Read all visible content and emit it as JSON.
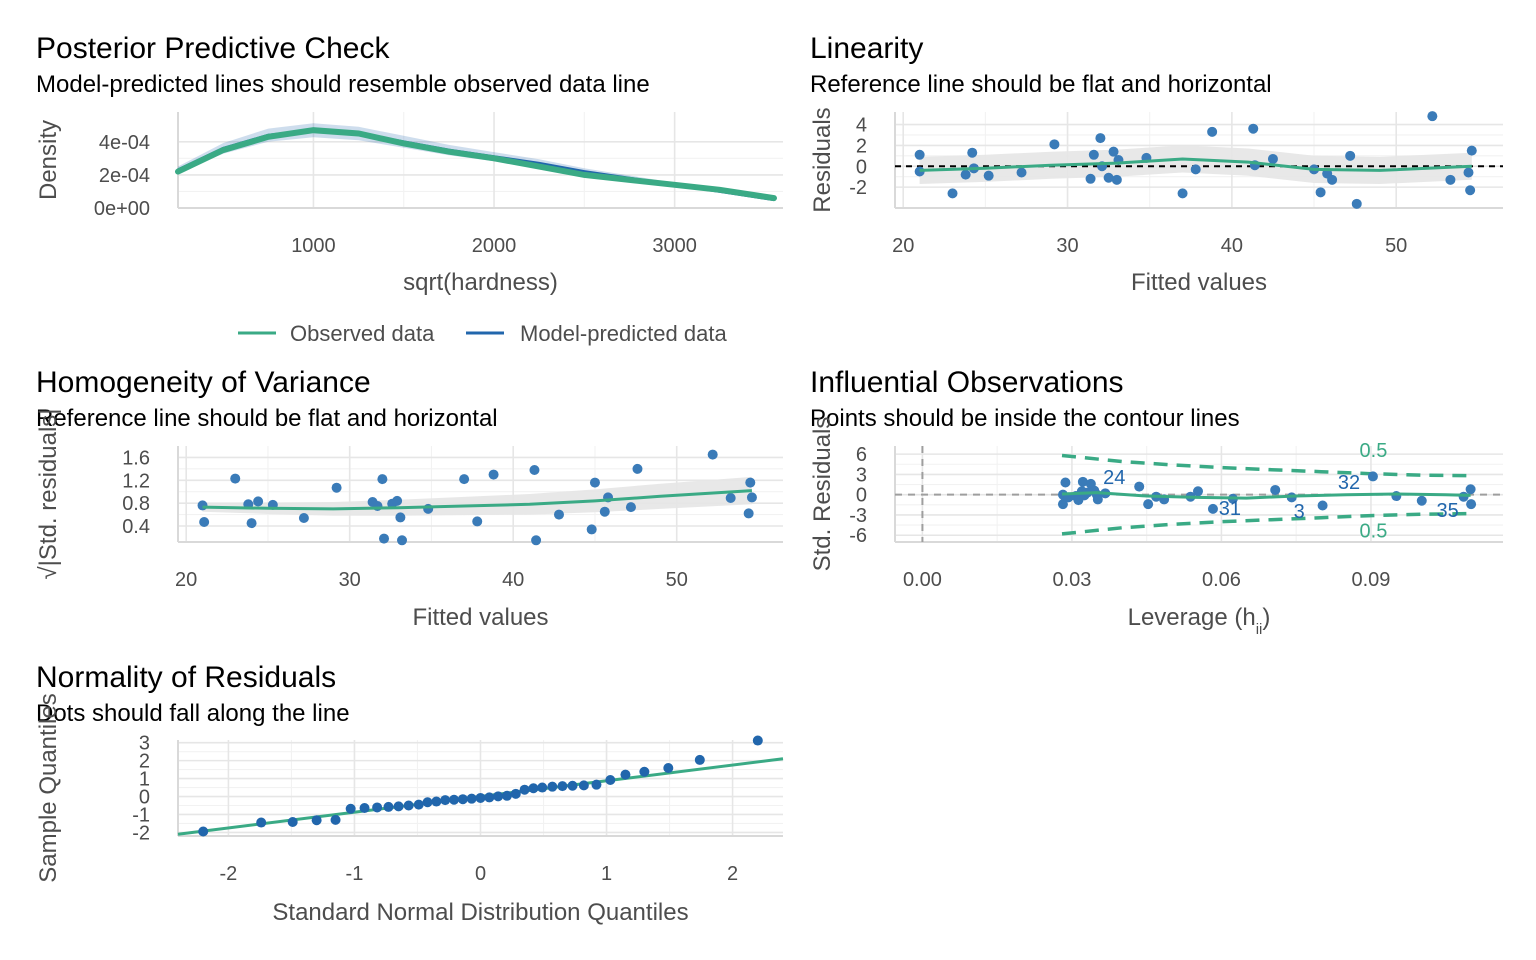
{
  "colors": {
    "observed": "#3aaa85",
    "predicted": "#2166ac",
    "points": "#3a7bb8",
    "ribbon": "#e5e5e5",
    "contour": "#3aaa85",
    "grid": "#e6e6e6"
  },
  "legend": {
    "observed": "Observed data",
    "predicted": "Model-predicted data"
  },
  "chart_data": [
    {
      "id": "ppc",
      "type": "line",
      "title": "Posterior Predictive Check",
      "subtitle": "Model-predicted lines should resemble observed data line",
      "xlabel": "sqrt(hardness)",
      "ylabel": "Density",
      "xlim": [
        250,
        3600
      ],
      "ylim": [
        0,
        0.00058
      ],
      "xticks": [
        1000,
        2000,
        3000
      ],
      "xtick_labels": [
        "1000",
        "2000",
        "3000"
      ],
      "yticks": [
        0,
        0.0002,
        0.0004
      ],
      "ytick_labels": [
        "0e+00",
        "2e-04",
        "4e-04"
      ],
      "observed": {
        "x": [
          250,
          500,
          750,
          1000,
          1250,
          1500,
          1750,
          2000,
          2250,
          2500,
          2750,
          3000,
          3250,
          3550
        ],
        "y": [
          0.00022,
          0.00035,
          0.00043,
          0.00047,
          0.00045,
          0.00039,
          0.00034,
          0.0003,
          0.00025,
          0.0002,
          0.00017,
          0.00014,
          0.00011,
          6e-05
        ]
      },
      "predicted": {
        "x": [
          250,
          500,
          750,
          1000,
          1250,
          1500,
          1750,
          2000,
          2250,
          2500,
          2750,
          3000,
          3250,
          3550
        ],
        "y": [
          0.00023,
          0.00036,
          0.00044,
          0.00047,
          0.00045,
          0.0004,
          0.00035,
          0.00031,
          0.00027,
          0.00022,
          0.00018,
          0.00014,
          0.0001,
          5e-05
        ]
      }
    },
    {
      "id": "linearity",
      "type": "scatter",
      "title": "Linearity",
      "subtitle": "Reference line should be flat and horizontal",
      "xlabel": "Fitted values",
      "ylabel": "Residuals",
      "xlim": [
        19.5,
        56.5
      ],
      "ylim": [
        -4,
        5.2
      ],
      "xticks": [
        20,
        30,
        40,
        50
      ],
      "xtick_labels": [
        "20",
        "30",
        "40",
        "50"
      ],
      "yticks": [
        -2,
        0,
        2,
        4
      ],
      "ytick_labels": [
        "-2",
        "0",
        "2",
        "4"
      ],
      "points": [
        [
          21,
          1.1
        ],
        [
          21,
          -0.5
        ],
        [
          23,
          -2.6
        ],
        [
          23.8,
          -0.8
        ],
        [
          24.2,
          1.3
        ],
        [
          24.3,
          -0.2
        ],
        [
          25.2,
          -0.9
        ],
        [
          27.2,
          -0.6
        ],
        [
          29.2,
          2.1
        ],
        [
          31.4,
          -1.2
        ],
        [
          31.6,
          1.1
        ],
        [
          32,
          2.7
        ],
        [
          32.1,
          0.0
        ],
        [
          32.5,
          -1.1
        ],
        [
          32.8,
          1.4
        ],
        [
          33,
          -1.3
        ],
        [
          33.1,
          0.6
        ],
        [
          34.8,
          0.8
        ],
        [
          37,
          -2.6
        ],
        [
          37.8,
          -0.3
        ],
        [
          38.8,
          3.3
        ],
        [
          41.3,
          3.6
        ],
        [
          41.4,
          0.1
        ],
        [
          42.5,
          0.7
        ],
        [
          45,
          -0.3
        ],
        [
          45.4,
          -2.5
        ],
        [
          45.8,
          -0.7
        ],
        [
          46.1,
          -1.3
        ],
        [
          47.2,
          1.0
        ],
        [
          47.6,
          -3.6
        ],
        [
          52.2,
          4.8
        ],
        [
          53.3,
          -1.3
        ],
        [
          54.4,
          -0.6
        ],
        [
          54.5,
          -2.3
        ],
        [
          54.6,
          1.5
        ]
      ],
      "smooth": {
        "x": [
          21,
          25,
          29,
          33,
          37,
          41,
          45,
          49,
          54.6
        ],
        "y": [
          -0.4,
          -0.2,
          0.1,
          0.3,
          0.7,
          0.4,
          -0.3,
          -0.4,
          0.0
        ]
      }
    },
    {
      "id": "homogeneity",
      "type": "scatter",
      "title": "Homogeneity of Variance",
      "subtitle": "Reference line should be flat and horizontal",
      "xlabel": "Fitted values",
      "ylabel": "√|Std. residuals|",
      "xlim": [
        19.5,
        56.5
      ],
      "ylim": [
        0.12,
        1.8
      ],
      "xticks": [
        20,
        30,
        40,
        50
      ],
      "xtick_labels": [
        "20",
        "30",
        "40",
        "50"
      ],
      "yticks": [
        0.4,
        0.8,
        1.2,
        1.6
      ],
      "ytick_labels": [
        "0.4",
        "0.8",
        "1.2",
        "1.6"
      ],
      "points": [
        [
          21,
          0.76
        ],
        [
          21.1,
          0.47
        ],
        [
          23,
          1.23
        ],
        [
          23.8,
          0.78
        ],
        [
          24,
          0.45
        ],
        [
          24.4,
          0.83
        ],
        [
          25.3,
          0.77
        ],
        [
          27.2,
          0.54
        ],
        [
          29.2,
          1.07
        ],
        [
          31.4,
          0.82
        ],
        [
          31.7,
          0.75
        ],
        [
          32,
          1.22
        ],
        [
          32.1,
          0.18
        ],
        [
          32.6,
          0.79
        ],
        [
          32.9,
          0.84
        ],
        [
          33.1,
          0.55
        ],
        [
          33.2,
          0.15
        ],
        [
          34.8,
          0.7
        ],
        [
          37,
          1.22
        ],
        [
          37.8,
          0.48
        ],
        [
          38.8,
          1.3
        ],
        [
          41.3,
          1.38
        ],
        [
          41.4,
          0.15
        ],
        [
          42.8,
          0.6
        ],
        [
          44.8,
          0.34
        ],
        [
          45,
          1.16
        ],
        [
          45.6,
          0.65
        ],
        [
          45.8,
          0.9
        ],
        [
          47.2,
          0.73
        ],
        [
          47.6,
          1.4
        ],
        [
          52.2,
          1.65
        ],
        [
          53.3,
          0.89
        ],
        [
          54.4,
          0.62
        ],
        [
          54.5,
          1.16
        ],
        [
          54.6,
          0.9
        ]
      ],
      "smooth": {
        "x": [
          21,
          25,
          29,
          33,
          37,
          41,
          45,
          49,
          54.6
        ],
        "y": [
          0.73,
          0.71,
          0.7,
          0.72,
          0.75,
          0.78,
          0.84,
          0.92,
          1.02
        ]
      }
    },
    {
      "id": "influence",
      "type": "scatter",
      "title": "Influential Observations",
      "subtitle": "Points should be inside the contour lines",
      "xlabel": "Leverage (h",
      "xlabel_sub": "ii",
      "xlabel_end": ")",
      "ylabel": "Std. Residuals",
      "xlim": [
        -0.0055,
        0.1165
      ],
      "ylim": [
        -7.0,
        7.2
      ],
      "xticks": [
        0.0,
        0.03,
        0.06,
        0.09
      ],
      "xtick_labels": [
        "0.00",
        "0.03",
        "0.06",
        "0.09"
      ],
      "yticks": [
        -6,
        -3,
        0,
        3,
        6
      ],
      "ytick_labels": [
        "-6",
        "-3",
        "0",
        "3",
        "6"
      ],
      "points": [
        [
          0.0282,
          -1.4
        ],
        [
          0.0282,
          0.0
        ],
        [
          0.0287,
          1.8
        ],
        [
          0.0293,
          -0.4
        ],
        [
          0.0308,
          -0.2
        ],
        [
          0.0313,
          -0.8
        ],
        [
          0.032,
          0.5
        ],
        [
          0.0322,
          1.9
        ],
        [
          0.0325,
          -0.1
        ],
        [
          0.0331,
          0.3
        ],
        [
          0.0338,
          1.6
        ],
        [
          0.0345,
          0.6
        ],
        [
          0.035,
          0.0
        ],
        [
          0.0352,
          -0.7
        ],
        [
          0.0367,
          0.2
        ],
        [
          0.0435,
          1.2
        ],
        [
          0.0453,
          -1.4
        ],
        [
          0.0469,
          -0.3
        ],
        [
          0.0485,
          -0.7
        ],
        [
          0.0538,
          -0.3
        ],
        [
          0.0553,
          0.5
        ],
        [
          0.0583,
          -2.1
        ],
        [
          0.0623,
          -0.6
        ],
        [
          0.0708,
          0.7
        ],
        [
          0.0741,
          -0.4
        ],
        [
          0.0803,
          -1.6
        ],
        [
          0.0904,
          2.7
        ],
        [
          0.0951,
          -0.2
        ],
        [
          0.1002,
          -0.9
        ],
        [
          0.1086,
          -0.3
        ],
        [
          0.11,
          0.8
        ],
        [
          0.1101,
          -1.4
        ]
      ],
      "smooth": {
        "x": [
          0.028,
          0.035,
          0.045,
          0.055,
          0.065,
          0.075,
          0.085,
          0.095,
          0.105,
          0.11
        ],
        "y": [
          0.1,
          0.3,
          -0.2,
          -0.4,
          -0.5,
          -0.2,
          0.0,
          0.1,
          0.0,
          -0.1
        ]
      },
      "contour_upper": {
        "x": [
          0.028,
          0.04,
          0.05,
          0.06,
          0.07,
          0.08,
          0.09,
          0.1,
          0.11
        ],
        "y": [
          5.8,
          4.9,
          4.4,
          4.0,
          3.7,
          3.4,
          3.1,
          2.9,
          2.8
        ]
      },
      "contour_lower": {
        "x": [
          0.028,
          0.04,
          0.05,
          0.06,
          0.07,
          0.08,
          0.09,
          0.1,
          0.11
        ],
        "y": [
          -5.8,
          -4.9,
          -4.4,
          -4.0,
          -3.7,
          -3.4,
          -3.1,
          -2.9,
          -2.8
        ]
      },
      "contour_label": "0.5",
      "labels": [
        {
          "text": "24",
          "x": 0.0385,
          "y": 2.6
        },
        {
          "text": "32",
          "x": 0.0856,
          "y": 1.9
        },
        {
          "text": "31",
          "x": 0.0617,
          "y": -2.0
        },
        {
          "text": "3",
          "x": 0.0756,
          "y": -2.4
        },
        {
          "text": "35",
          "x": 0.1054,
          "y": -2.3
        }
      ]
    },
    {
      "id": "normality",
      "type": "scatter",
      "title": "Normality of Residuals",
      "subtitle": "Dots should fall along the line",
      "xlabel": "Standard Normal Distribution Quantiles",
      "ylabel": "Sample Quantiles",
      "xlim": [
        -2.4,
        2.4
      ],
      "ylim": [
        -2.2,
        3.15
      ],
      "xticks": [
        -2,
        -1,
        0,
        1,
        2
      ],
      "xtick_labels": [
        "-2",
        "-1",
        "0",
        "1",
        "2"
      ],
      "yticks": [
        -2,
        -1,
        0,
        1,
        2,
        3
      ],
      "ytick_labels": [
        "-2",
        "-1",
        "0",
        "1",
        "2",
        "3"
      ],
      "points": [
        [
          -2.2,
          -1.95
        ],
        [
          -1.74,
          -1.45
        ],
        [
          -1.49,
          -1.42
        ],
        [
          -1.3,
          -1.32
        ],
        [
          -1.15,
          -1.3
        ],
        [
          -1.03,
          -0.68
        ],
        [
          -0.92,
          -0.64
        ],
        [
          -0.82,
          -0.61
        ],
        [
          -0.73,
          -0.58
        ],
        [
          -0.65,
          -0.55
        ],
        [
          -0.57,
          -0.5
        ],
        [
          -0.49,
          -0.45
        ],
        [
          -0.42,
          -0.32
        ],
        [
          -0.35,
          -0.28
        ],
        [
          -0.28,
          -0.2
        ],
        [
          -0.21,
          -0.18
        ],
        [
          -0.14,
          -0.15
        ],
        [
          -0.07,
          -0.12
        ],
        [
          0.0,
          -0.08
        ],
        [
          0.07,
          -0.05
        ],
        [
          0.14,
          0.01
        ],
        [
          0.21,
          0.04
        ],
        [
          0.28,
          0.15
        ],
        [
          0.35,
          0.38
        ],
        [
          0.42,
          0.46
        ],
        [
          0.49,
          0.5
        ],
        [
          0.57,
          0.55
        ],
        [
          0.65,
          0.58
        ],
        [
          0.73,
          0.6
        ],
        [
          0.82,
          0.62
        ],
        [
          0.92,
          0.66
        ],
        [
          1.03,
          0.92
        ],
        [
          1.15,
          1.22
        ],
        [
          1.3,
          1.38
        ],
        [
          1.49,
          1.59
        ],
        [
          1.74,
          2.04
        ],
        [
          2.2,
          3.12
        ]
      ],
      "ref_line": {
        "x": [
          -2.4,
          2.4
        ],
        "y": [
          -2.1,
          2.1
        ]
      }
    }
  ]
}
